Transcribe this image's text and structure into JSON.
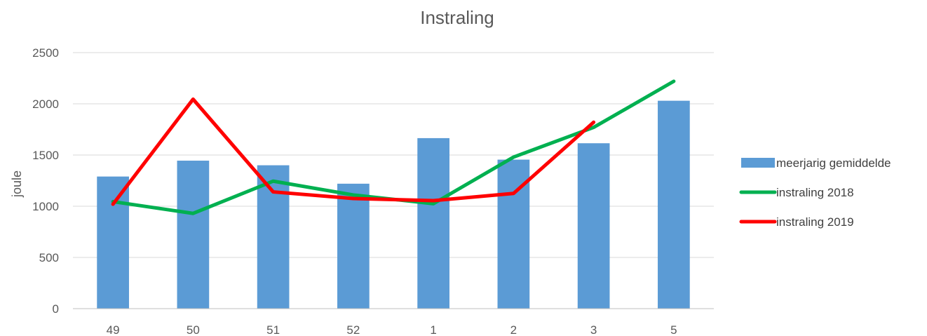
{
  "chart_data": {
    "type": "bar",
    "title": "Instraling",
    "xlabel": "",
    "ylabel": "joule",
    "ylim": [
      0,
      2500
    ],
    "yticks": [
      0,
      500,
      1000,
      1500,
      2000,
      2500
    ],
    "grid": true,
    "legend_position": "right",
    "categories": [
      "49",
      "50",
      "51",
      "52",
      "1",
      "2",
      "3",
      "5"
    ],
    "series": [
      {
        "name": "meerjarig gemiddelde",
        "kind": "bar",
        "color": "#5B9BD5",
        "values": [
          1290,
          1445,
          1400,
          1220,
          1665,
          1455,
          1615,
          2030
        ]
      },
      {
        "name": "instraling 2018",
        "kind": "line",
        "color": "#00B050",
        "values": [
          1045,
          930,
          1245,
          1110,
          1025,
          1480,
          1770,
          2220
        ]
      },
      {
        "name": "instraling 2019",
        "kind": "line",
        "color": "#FF0000",
        "values": [
          1020,
          2045,
          1140,
          1075,
          1055,
          1125,
          1820,
          null
        ]
      }
    ]
  }
}
